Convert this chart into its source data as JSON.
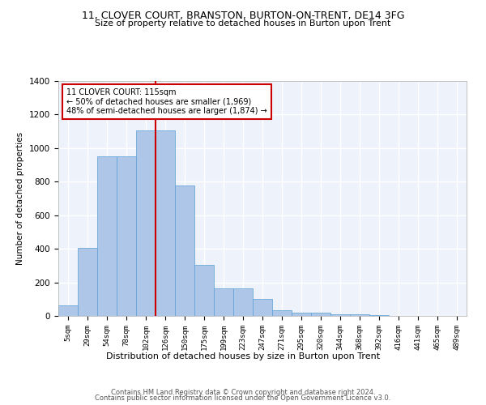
{
  "title_line1": "11, CLOVER COURT, BRANSTON, BURTON-ON-TRENT, DE14 3FG",
  "title_line2": "Size of property relative to detached houses in Burton upon Trent",
  "xlabel": "Distribution of detached houses by size in Burton upon Trent",
  "ylabel": "Number of detached properties",
  "footer_line1": "Contains HM Land Registry data © Crown copyright and database right 2024.",
  "footer_line2": "Contains public sector information licensed under the Open Government Licence v3.0.",
  "bar_labels": [
    "5sqm",
    "29sqm",
    "54sqm",
    "78sqm",
    "102sqm",
    "126sqm",
    "150sqm",
    "175sqm",
    "199sqm",
    "223sqm",
    "247sqm",
    "271sqm",
    "295sqm",
    "320sqm",
    "344sqm",
    "368sqm",
    "392sqm",
    "416sqm",
    "441sqm",
    "465sqm",
    "489sqm"
  ],
  "bar_heights": [
    65,
    405,
    950,
    950,
    1105,
    1105,
    775,
    305,
    165,
    165,
    100,
    35,
    17,
    17,
    10,
    10,
    5,
    2,
    2,
    2,
    2
  ],
  "bar_color": "#aec6e8",
  "bar_edge_color": "#5a9fd4",
  "vline_x": 4.5,
  "vline_color": "#cc0000",
  "ylim": [
    0,
    1400
  ],
  "yticks": [
    0,
    200,
    400,
    600,
    800,
    1000,
    1200,
    1400
  ],
  "annotation_text": "11 CLOVER COURT: 115sqm\n← 50% of detached houses are smaller (1,969)\n48% of semi-detached houses are larger (1,874) →",
  "annotation_box_color": "#cc0000",
  "bg_color": "#eef3fb",
  "grid_color": "#ffffff"
}
